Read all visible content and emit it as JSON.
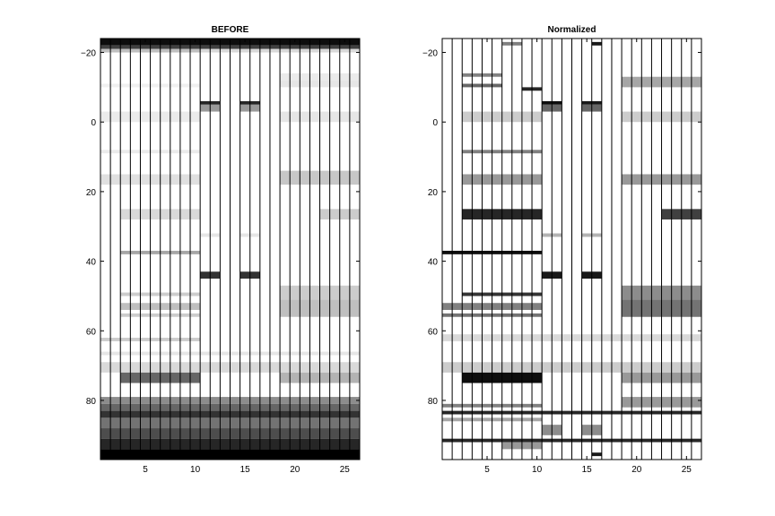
{
  "colors": {
    "background": "#ffffff",
    "axis": "#000000",
    "cell_max": "#000000",
    "cell_min": "#ffffff"
  },
  "chart_data": [
    {
      "type": "heatmap",
      "title": "BEFORE",
      "xlabel": "",
      "ylabel": "",
      "xlim": [
        0.5,
        26.5
      ],
      "ylim": [
        -24,
        97
      ],
      "y_reversed": true,
      "grid": false,
      "colormap": "gray-inverted",
      "columns": 26,
      "x_ticks": [
        5,
        10,
        15,
        20,
        25
      ],
      "y_ticks": [
        -20,
        0,
        20,
        40,
        60,
        80
      ],
      "column_separators": true,
      "bands": [
        {
          "y0": -24,
          "y1": -22,
          "cols": "1-26",
          "v": 0.95
        },
        {
          "y0": -22,
          "y1": -21,
          "cols": "1-26",
          "v": 0.75
        },
        {
          "y0": -21,
          "y1": -20,
          "cols": "1-10",
          "v": 0.25
        },
        {
          "y0": -21,
          "y1": -20,
          "cols": "11-26",
          "v": 0.15
        },
        {
          "y0": -14,
          "y1": -12,
          "cols": "19-26",
          "v": 0.08
        },
        {
          "y0": -12,
          "y1": -10,
          "cols": "19-26",
          "v": 0.1
        },
        {
          "y0": -11,
          "y1": -10,
          "cols": "1-10",
          "v": 0.06
        },
        {
          "y0": -6,
          "y1": -5,
          "cols": "11-12",
          "v": 0.85
        },
        {
          "y0": -6,
          "y1": -5,
          "cols": "15-16",
          "v": 0.85
        },
        {
          "y0": -5,
          "y1": -3,
          "cols": "11-12",
          "v": 0.4
        },
        {
          "y0": -5,
          "y1": -3,
          "cols": "15-16",
          "v": 0.4
        },
        {
          "y0": -3,
          "y1": 0,
          "cols": "1-10",
          "v": 0.08
        },
        {
          "y0": -3,
          "y1": 0,
          "cols": "19-26",
          "v": 0.1
        },
        {
          "y0": 8,
          "y1": 9,
          "cols": "1-10",
          "v": 0.08
        },
        {
          "y0": 15,
          "y1": 18,
          "cols": "1-10",
          "v": 0.12
        },
        {
          "y0": 14,
          "y1": 18,
          "cols": "19-26",
          "v": 0.22
        },
        {
          "y0": 25,
          "y1": 28,
          "cols": "3-10",
          "v": 0.15
        },
        {
          "y0": 25,
          "y1": 28,
          "cols": "23-26",
          "v": 0.2
        },
        {
          "y0": 32,
          "y1": 33,
          "cols": "11-12",
          "v": 0.1
        },
        {
          "y0": 32,
          "y1": 33,
          "cols": "15-16",
          "v": 0.1
        },
        {
          "y0": 37,
          "y1": 38,
          "cols": "3-10",
          "v": 0.35
        },
        {
          "y0": 43,
          "y1": 45,
          "cols": "11-12",
          "v": 0.8
        },
        {
          "y0": 43,
          "y1": 45,
          "cols": "15-16",
          "v": 0.8
        },
        {
          "y0": 47,
          "y1": 51,
          "cols": "19-26",
          "v": 0.2
        },
        {
          "y0": 49,
          "y1": 50,
          "cols": "3-10",
          "v": 0.2
        },
        {
          "y0": 52,
          "y1": 54,
          "cols": "3-10",
          "v": 0.25
        },
        {
          "y0": 51,
          "y1": 56,
          "cols": "19-26",
          "v": 0.25
        },
        {
          "y0": 55,
          "y1": 56,
          "cols": "3-10",
          "v": 0.2
        },
        {
          "y0": 62,
          "y1": 63,
          "cols": "1-10",
          "v": 0.2
        },
        {
          "y0": 66,
          "y1": 67,
          "cols": "1-26",
          "v": 0.1
        },
        {
          "y0": 69,
          "y1": 72,
          "cols": "1-26",
          "v": 0.15
        },
        {
          "y0": 72,
          "y1": 75,
          "cols": "3-10",
          "v": 0.6
        },
        {
          "y0": 72,
          "y1": 75,
          "cols": "19-26",
          "v": 0.3
        },
        {
          "y0": 79,
          "y1": 81,
          "cols": "1-26",
          "v": 0.45
        },
        {
          "y0": 81,
          "y1": 83,
          "cols": "1-26",
          "v": 0.6
        },
        {
          "y0": 83,
          "y1": 85,
          "cols": "1-26",
          "v": 0.8
        },
        {
          "y0": 85,
          "y1": 88,
          "cols": "1-26",
          "v": 0.55
        },
        {
          "y0": 88,
          "y1": 91,
          "cols": "1-26",
          "v": 0.7
        },
        {
          "y0": 91,
          "y1": 94,
          "cols": "1-26",
          "v": 0.85
        },
        {
          "y0": 94,
          "y1": 97,
          "cols": "1-26",
          "v": 1.0
        }
      ]
    },
    {
      "type": "heatmap",
      "title": "Normalized",
      "xlabel": "",
      "ylabel": "",
      "xlim": [
        0.5,
        26.5
      ],
      "ylim": [
        -24,
        97
      ],
      "y_reversed": true,
      "grid": false,
      "colormap": "gray-inverted",
      "columns": 26,
      "x_ticks": [
        5,
        10,
        15,
        20,
        25
      ],
      "y_ticks": [
        -20,
        0,
        20,
        40,
        60,
        80
      ],
      "column_separators": true,
      "bands": [
        {
          "y0": -23,
          "y1": -22,
          "cols": "7-8",
          "v": 0.5
        },
        {
          "y0": -23,
          "y1": -22,
          "cols": "16",
          "v": 0.9
        },
        {
          "y0": -14,
          "y1": -13,
          "cols": "3-6",
          "v": 0.5
        },
        {
          "y0": -13,
          "y1": -10,
          "cols": "19-26",
          "v": 0.35
        },
        {
          "y0": -11,
          "y1": -10,
          "cols": "3-6",
          "v": 0.6
        },
        {
          "y0": -10,
          "y1": -9,
          "cols": "9-10",
          "v": 0.85
        },
        {
          "y0": -6,
          "y1": -5,
          "cols": "11-12",
          "v": 0.95
        },
        {
          "y0": -6,
          "y1": -5,
          "cols": "15-16",
          "v": 0.9
        },
        {
          "y0": -5,
          "y1": -3,
          "cols": "11-12",
          "v": 0.6
        },
        {
          "y0": -5,
          "y1": -3,
          "cols": "15-16",
          "v": 0.6
        },
        {
          "y0": -3,
          "y1": 0,
          "cols": "3-10",
          "v": 0.2
        },
        {
          "y0": -3,
          "y1": 0,
          "cols": "19-26",
          "v": 0.2
        },
        {
          "y0": 8,
          "y1": 9,
          "cols": "3-10",
          "v": 0.5
        },
        {
          "y0": 15,
          "y1": 18,
          "cols": "3-10",
          "v": 0.4
        },
        {
          "y0": 15,
          "y1": 18,
          "cols": "19-26",
          "v": 0.4
        },
        {
          "y0": 25,
          "y1": 28,
          "cols": "3-10",
          "v": 0.85
        },
        {
          "y0": 25,
          "y1": 28,
          "cols": "23-26",
          "v": 0.75
        },
        {
          "y0": 32,
          "y1": 33,
          "cols": "11-12",
          "v": 0.3
        },
        {
          "y0": 32,
          "y1": 33,
          "cols": "15-16",
          "v": 0.3
        },
        {
          "y0": 37,
          "y1": 38,
          "cols": "1-10",
          "v": 0.95
        },
        {
          "y0": 43,
          "y1": 45,
          "cols": "11-12",
          "v": 0.9
        },
        {
          "y0": 43,
          "y1": 45,
          "cols": "15-16",
          "v": 0.9
        },
        {
          "y0": 47,
          "y1": 51,
          "cols": "19-26",
          "v": 0.45
        },
        {
          "y0": 49,
          "y1": 50,
          "cols": "3-10",
          "v": 0.8
        },
        {
          "y0": 51,
          "y1": 56,
          "cols": "19-26",
          "v": 0.55
        },
        {
          "y0": 52,
          "y1": 54,
          "cols": "1-10",
          "v": 0.5
        },
        {
          "y0": 55,
          "y1": 56,
          "cols": "1-10",
          "v": 0.55
        },
        {
          "y0": 61,
          "y1": 63,
          "cols": "1-26",
          "v": 0.15
        },
        {
          "y0": 69,
          "y1": 72,
          "cols": "1-26",
          "v": 0.2
        },
        {
          "y0": 72,
          "y1": 75,
          "cols": "3-10",
          "v": 0.95
        },
        {
          "y0": 72,
          "y1": 75,
          "cols": "19-26",
          "v": 0.4
        },
        {
          "y0": 79,
          "y1": 82,
          "cols": "19-26",
          "v": 0.4
        },
        {
          "y0": 81,
          "y1": 82,
          "cols": "1-10",
          "v": 0.5
        },
        {
          "y0": 83,
          "y1": 84,
          "cols": "1-26",
          "v": 0.85
        },
        {
          "y0": 85,
          "y1": 86,
          "cols": "1-10",
          "v": 0.35
        },
        {
          "y0": 87,
          "y1": 90,
          "cols": "11-12",
          "v": 0.45
        },
        {
          "y0": 87,
          "y1": 90,
          "cols": "15-16",
          "v": 0.45
        },
        {
          "y0": 91,
          "y1": 92,
          "cols": "1-26",
          "v": 0.85
        },
        {
          "y0": 92,
          "y1": 94,
          "cols": "7-10",
          "v": 0.4
        },
        {
          "y0": 95,
          "y1": 96,
          "cols": "16",
          "v": 0.9
        }
      ]
    }
  ]
}
